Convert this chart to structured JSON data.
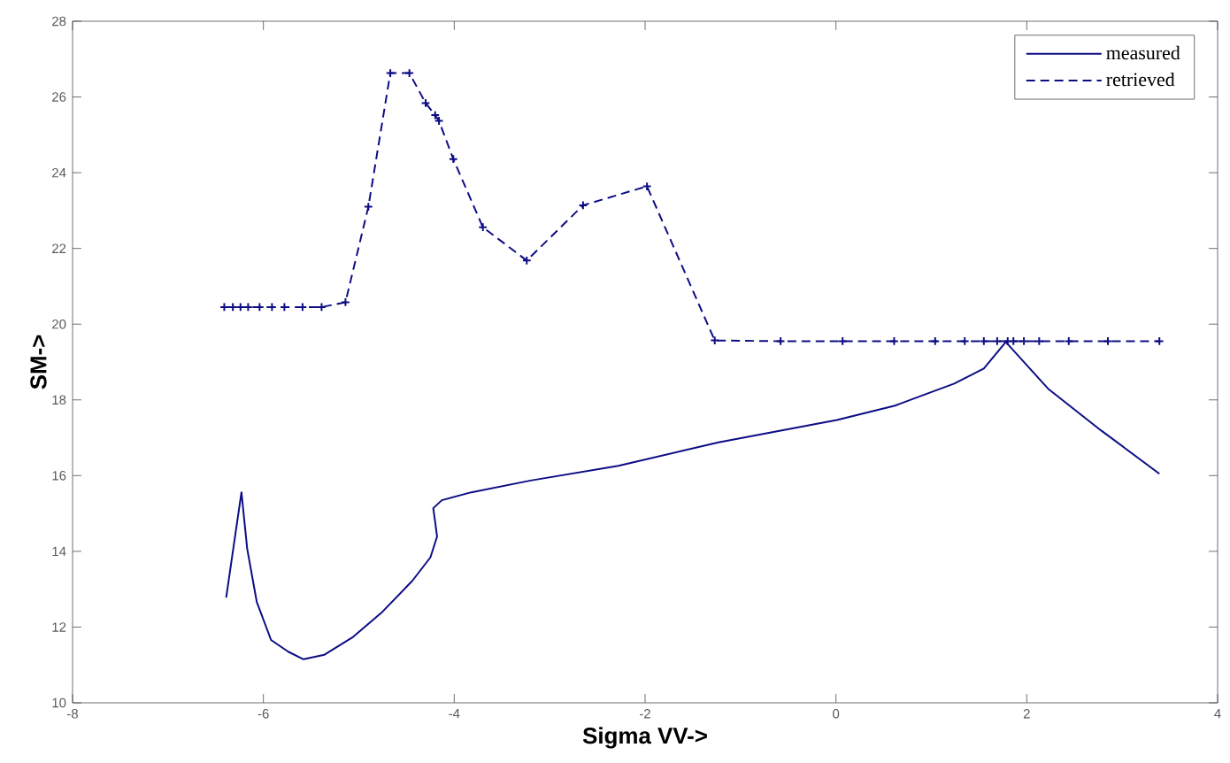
{
  "chart_data": {
    "type": "line",
    "xlabel": "Sigma VV->",
    "ylabel": "SM->",
    "xlim": [
      -8,
      4
    ],
    "ylim": [
      10,
      28
    ],
    "xticks": [
      -8,
      -6,
      -4,
      -2,
      0,
      2,
      4
    ],
    "yticks": [
      10,
      12,
      14,
      16,
      18,
      20,
      22,
      24,
      26,
      28
    ],
    "grid": false,
    "legend": "top right",
    "series": [
      {
        "name": "measured",
        "color": "#0c0c84",
        "line_style": "solid",
        "marker": "none",
        "x": [
          -6.39,
          -6.23,
          -6.17,
          -6.07,
          -5.92,
          -5.74,
          -5.58,
          -5.36,
          -5.06,
          -4.75,
          -4.44,
          -4.25,
          -4.18,
          -4.2,
          -4.22,
          -4.13,
          -3.82,
          -3.2,
          -2.28,
          -1.23,
          0.01,
          0.62,
          1.24,
          1.55,
          1.78,
          2.23,
          2.78,
          3.39
        ],
        "values": [
          12.78,
          15.56,
          14.07,
          12.67,
          11.66,
          11.35,
          11.15,
          11.27,
          11.74,
          12.41,
          13.22,
          13.84,
          14.39,
          14.78,
          15.14,
          15.35,
          15.56,
          15.87,
          16.26,
          16.88,
          17.47,
          17.85,
          18.43,
          18.83,
          19.53,
          18.28,
          17.19,
          16.05
        ]
      },
      {
        "name": "retrieved",
        "color": "#0c0c84",
        "line_style": "dashed",
        "marker": "cross",
        "x": [
          -6.41,
          -6.32,
          -6.24,
          -6.16,
          -6.04,
          -5.91,
          -5.78,
          -5.59,
          -5.39,
          -5.14,
          -4.9,
          -4.67,
          -4.47,
          -4.3,
          -4.2,
          -4.16,
          -4.01,
          -3.7,
          -3.24,
          -2.65,
          -1.98,
          -1.27,
          -0.58,
          0.07,
          0.61,
          1.04,
          1.35,
          1.55,
          1.69,
          1.8,
          1.86,
          1.97,
          2.13,
          2.44,
          2.85,
          3.39
        ],
        "values": [
          20.45,
          20.45,
          20.45,
          20.45,
          20.45,
          20.45,
          20.45,
          20.45,
          20.45,
          20.58,
          23.1,
          26.63,
          26.63,
          25.84,
          25.52,
          25.37,
          24.36,
          22.56,
          21.68,
          23.14,
          23.64,
          19.57,
          19.55,
          19.55,
          19.55,
          19.55,
          19.55,
          19.55,
          19.55,
          19.55,
          19.55,
          19.55,
          19.55,
          19.55,
          19.55,
          19.55
        ]
      }
    ]
  }
}
